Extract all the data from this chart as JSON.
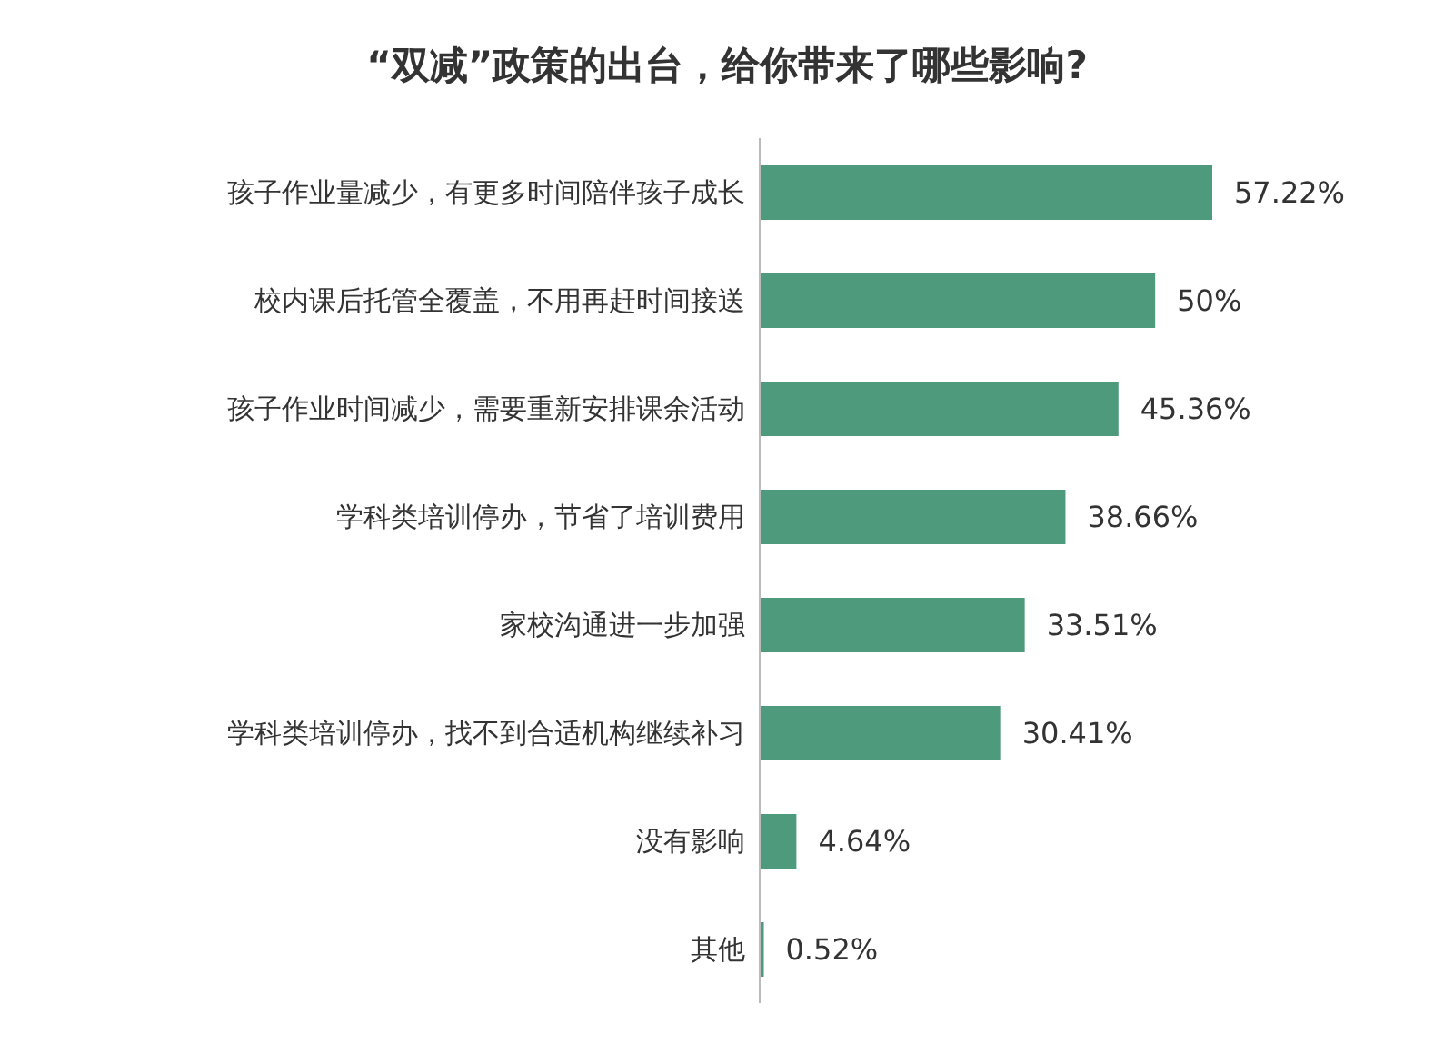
{
  "chart_data": {
    "type": "bar",
    "orientation": "horizontal",
    "title": "“双减”政策的出台，给你带来了哪些影响?",
    "categories": [
      "孩子作业量减少，有更多时间陪伴孩子成长",
      "校内课后托管全覆盖，不用再赶时间接送",
      "孩子作业时间减少，需要重新安排课余活动",
      "学科类培训停办，节省了培训费用",
      "家校沟通进一步加强",
      "学科类培训停办，找不到合适机构继续补习",
      "没有影响",
      "其他"
    ],
    "values": [
      57.22,
      50,
      45.36,
      38.66,
      33.51,
      30.41,
      4.64,
      0.52
    ],
    "value_labels": [
      "57.22%",
      "50%",
      "45.36%",
      "38.66%",
      "33.51%",
      "30.41%",
      "4.64%",
      "0.52%"
    ],
    "color": "#4e9a7c"
  }
}
